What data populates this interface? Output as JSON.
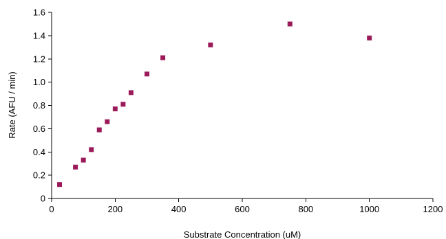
{
  "chart_data": {
    "type": "scatter",
    "title": "",
    "xlabel": "Substrate Concentration (uM)",
    "ylabel": "Rate (AFU / min)",
    "xlim": [
      0,
      1200
    ],
    "ylim": [
      0,
      1.6
    ],
    "xticks": [
      0,
      200,
      400,
      600,
      800,
      1000,
      1200
    ],
    "yticks": [
      0,
      0.2,
      0.4,
      0.6,
      0.8,
      1.0,
      1.2,
      1.4,
      1.6
    ],
    "xtick_labels": [
      "0",
      "200",
      "400",
      "600",
      "800",
      "1000",
      "1200"
    ],
    "ytick_labels": [
      "0",
      "0.2",
      "0.4",
      "0.6",
      "0.8",
      "1.0",
      "1.2",
      "1.4",
      "1.6"
    ],
    "grid": false,
    "legend": "none",
    "marker": "square",
    "marker_color": "#9b1b5a",
    "series": [
      {
        "x": [
          25,
          75,
          100,
          125,
          150,
          175,
          200,
          225,
          250,
          300,
          350,
          500,
          750,
          1000
        ],
        "y": [
          0.12,
          0.27,
          0.33,
          0.42,
          0.59,
          0.66,
          0.77,
          0.81,
          0.91,
          1.07,
          1.21,
          1.32,
          1.5,
          1.38
        ]
      }
    ]
  }
}
